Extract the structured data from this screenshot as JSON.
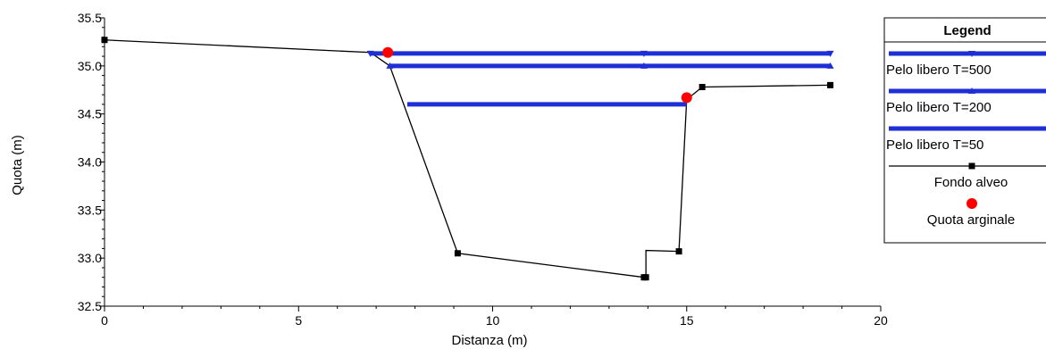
{
  "chart_data": {
    "type": "line",
    "title": "",
    "xlabel": "Distanza (m)",
    "ylabel": "Quota (m)",
    "xlim": [
      0,
      20
    ],
    "ylim": [
      32.5,
      35.5
    ],
    "x_ticks": [
      0,
      5,
      10,
      15,
      20
    ],
    "x_tick_labels": [
      "0",
      "5",
      "10",
      "15",
      "20"
    ],
    "y_ticks": [
      32.5,
      33.0,
      33.5,
      34.0,
      34.5,
      35.0,
      35.5
    ],
    "y_tick_labels": [
      "32.5",
      "33.0",
      "33.5",
      "34.0",
      "34.5",
      "35.0",
      "35.5"
    ],
    "grid": false,
    "legend": {
      "title": "Legend",
      "placement": "right"
    },
    "series": [
      {
        "name": "Pelo libero  T=500",
        "color": "#1f2fd6",
        "marker": "triangle-down",
        "x": [
          6.85,
          18.7
        ],
        "y": [
          35.13,
          35.13
        ],
        "markers_x": [
          6.85,
          13.9,
          18.7
        ]
      },
      {
        "name": "Pelo libero  T=200",
        "color": "#1f2fd6",
        "marker": "triangle-up",
        "x": [
          7.35,
          18.7
        ],
        "y": [
          35.0,
          35.0
        ],
        "markers_x": [
          7.35,
          13.9,
          18.7
        ]
      },
      {
        "name": "Pelo libero  T=50",
        "color": "#1f2fd6",
        "marker": "none",
        "x": [
          7.8,
          15.0
        ],
        "y": [
          34.6,
          34.6
        ],
        "markers_x": []
      },
      {
        "name": "Fondo alveo",
        "color": "#000000",
        "marker": "square",
        "x": [
          0.0,
          6.85,
          7.35,
          9.1,
          13.9,
          13.95,
          13.95,
          14.8,
          15.0,
          15.4,
          18.7
        ],
        "y": [
          35.27,
          35.14,
          35.0,
          33.05,
          32.8,
          32.8,
          33.08,
          33.07,
          34.65,
          34.78,
          34.8
        ],
        "markers_x": [
          0.0,
          9.1,
          13.9,
          13.95,
          14.8,
          15.4,
          18.7
        ]
      },
      {
        "name": "Quota arginale",
        "color": "#ff0000",
        "marker": "circle",
        "x": [
          7.3,
          15.0
        ],
        "y": [
          35.14,
          34.67
        ]
      }
    ]
  }
}
